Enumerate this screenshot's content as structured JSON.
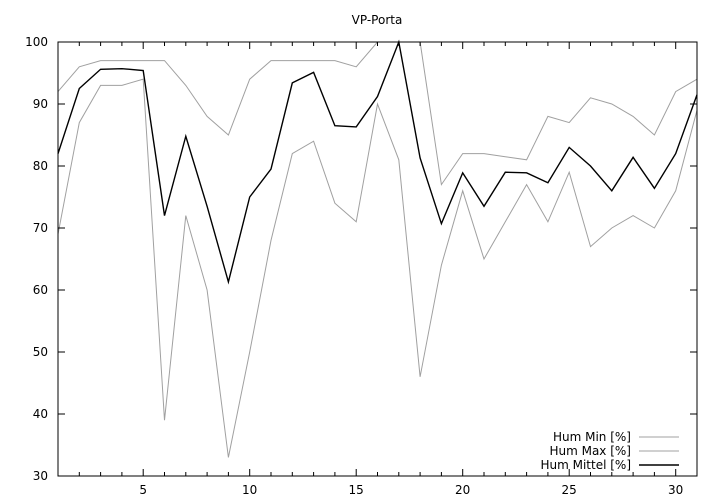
{
  "chart_data": {
    "type": "line",
    "title": "VP-Porta",
    "xlabel": "",
    "ylabel": "",
    "xlim": [
      1,
      31
    ],
    "ylim": [
      30,
      100
    ],
    "xticks": [
      5,
      10,
      15,
      20,
      25,
      30
    ],
    "yticks": [
      30,
      40,
      50,
      60,
      70,
      80,
      90,
      100
    ],
    "grid": false,
    "legend_position": "bottom-right",
    "x": [
      1,
      2,
      3,
      4,
      5,
      6,
      7,
      8,
      9,
      10,
      11,
      12,
      13,
      14,
      15,
      16,
      17,
      18,
      19,
      20,
      21,
      22,
      23,
      24,
      25,
      26,
      27,
      28,
      29,
      30,
      31
    ],
    "series": [
      {
        "name": "Hum Min [%]",
        "color": "#a0a0a0",
        "values": [
          69,
          87,
          93,
          93,
          94,
          39,
          72,
          60,
          33,
          50,
          68,
          82,
          84,
          74,
          71,
          90,
          81,
          46,
          64,
          76,
          65,
          71,
          77,
          71,
          79,
          67,
          70,
          72,
          70,
          76,
          89
        ]
      },
      {
        "name": "Hum Max [%]",
        "color": "#a0a0a0",
        "values": [
          92,
          96,
          97,
          97,
          97,
          97,
          93,
          88,
          85,
          94,
          97,
          97,
          97,
          97,
          96,
          100,
          100,
          100,
          77,
          82,
          82,
          81.5,
          81,
          88,
          87,
          91,
          90,
          88,
          85,
          92,
          94
        ]
      },
      {
        "name": "Hum Mittel [%]",
        "color": "#000000",
        "values": [
          82,
          92.5,
          95.6,
          95.7,
          95.4,
          72,
          84.8,
          73.5,
          61.3,
          75,
          79.5,
          93.4,
          95.1,
          86.5,
          86.3,
          91.2,
          100,
          81.3,
          70.7,
          78.9,
          73.5,
          79,
          78.9,
          77.3,
          83,
          80,
          76,
          81.4,
          76.4,
          82,
          91.5
        ]
      }
    ]
  }
}
